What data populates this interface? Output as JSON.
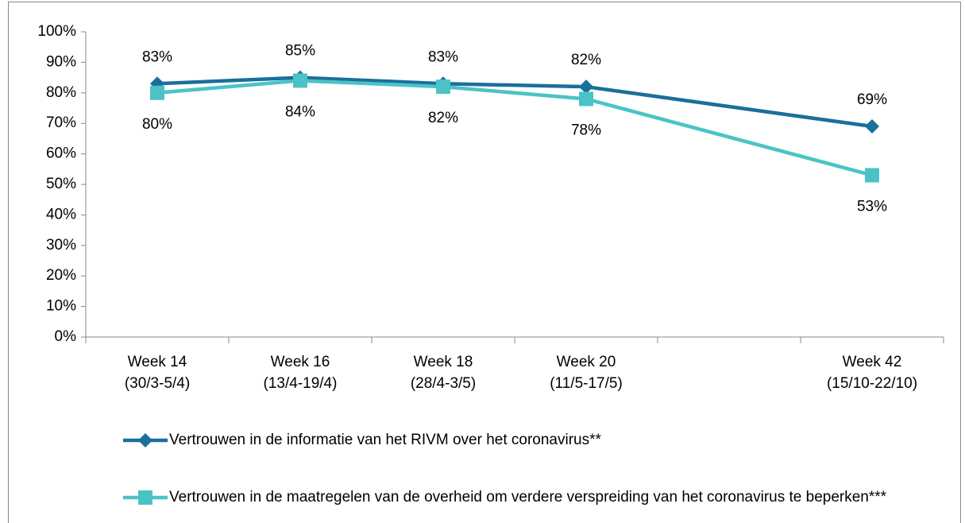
{
  "chart_data": {
    "type": "line",
    "categories": [
      "Week 14\n(30/3-5/4)",
      "Week 16\n(13/4-19/4)",
      "Week 18\n(28/4-3/5)",
      "Week 20\n(11/5-17/5)",
      null,
      "Week 42\n(15/10-22/10)"
    ],
    "series": [
      {
        "name": "Vertrouwen in de informatie van het RIVM over het coronavirus**",
        "color": "#1a6f9c",
        "marker": "diamond",
        "values": [
          83,
          85,
          83,
          82,
          null,
          69
        ],
        "value_labels": [
          "83%",
          "85%",
          "83%",
          "82%",
          null,
          "69%"
        ]
      },
      {
        "name": "Vertrouwen in de maatregelen van de overheid om verdere verspreiding van het coronavirus te beperken***",
        "color": "#4bc3c6",
        "marker": "square",
        "values": [
          80,
          84,
          82,
          78,
          null,
          53
        ],
        "value_labels": [
          "80%",
          "84%",
          "82%",
          "78%",
          null,
          "53%"
        ]
      }
    ],
    "connect_nulls": true,
    "ylim": [
      0,
      100
    ],
    "yticks": [
      {
        "value": 0,
        "label": "0%"
      },
      {
        "value": 10,
        "label": "10%"
      },
      {
        "value": 20,
        "label": "20%"
      },
      {
        "value": 30,
        "label": "30%"
      },
      {
        "value": 40,
        "label": "40%"
      },
      {
        "value": 50,
        "label": "50%"
      },
      {
        "value": 60,
        "label": "60%"
      },
      {
        "value": 70,
        "label": "70%"
      },
      {
        "value": 80,
        "label": "80%"
      },
      {
        "value": 90,
        "label": "90%"
      },
      {
        "value": 100,
        "label": "100%"
      }
    ],
    "grid": false,
    "legend": "bottom"
  }
}
